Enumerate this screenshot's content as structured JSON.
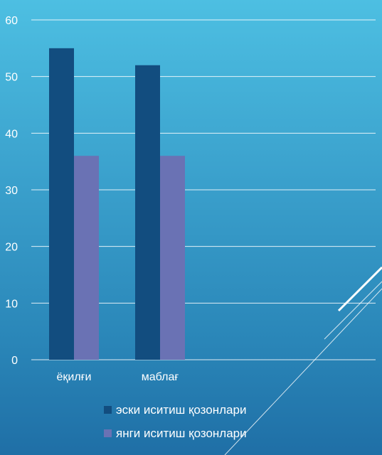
{
  "chart_data": {
    "type": "bar",
    "categories": [
      "ёқилғи",
      "маблағ"
    ],
    "series": [
      {
        "name": "эски иситиш қозонлари",
        "values": [
          55,
          52
        ],
        "color": "#124d7f"
      },
      {
        "name": "янги иситиш қозонлари",
        "values": [
          36,
          36
        ],
        "color": "#6a72b4"
      }
    ],
    "ylim": [
      0,
      60
    ],
    "yticks": [
      0,
      10,
      20,
      30,
      40,
      50,
      60
    ],
    "grid": true,
    "legend_placement": "bottom"
  }
}
